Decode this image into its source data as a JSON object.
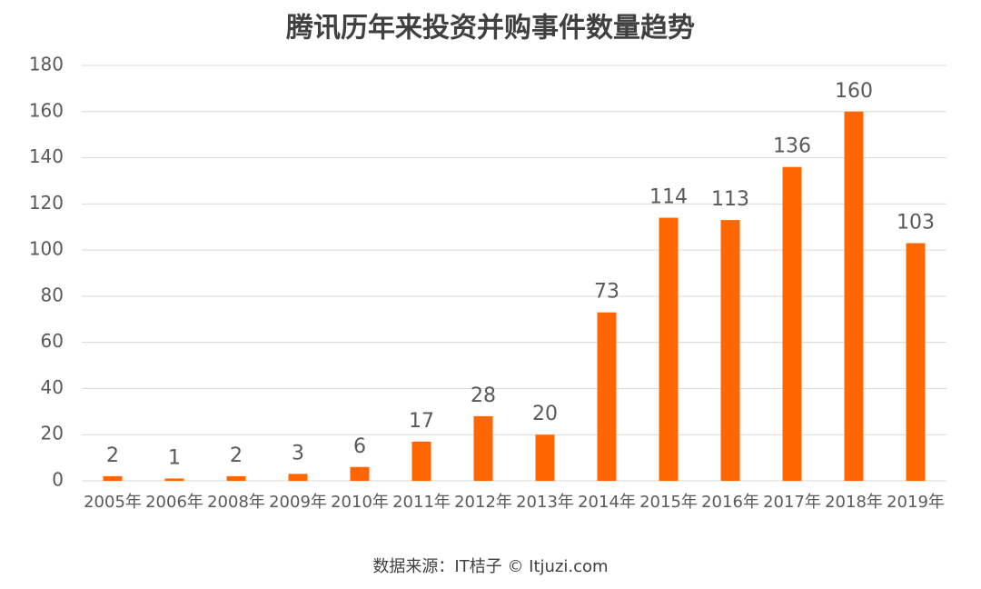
{
  "chart_data": {
    "type": "bar",
    "title": "腾讯历年来投资并购事件数量趋势",
    "categories": [
      "2005年",
      "2006年",
      "2008年",
      "2009年",
      "2010年",
      "2011年",
      "2012年",
      "2013年",
      "2014年",
      "2015年",
      "2016年",
      "2017年",
      "2018年",
      "2019年"
    ],
    "values": [
      2,
      1,
      2,
      3,
      6,
      17,
      28,
      20,
      73,
      114,
      113,
      136,
      160,
      103
    ],
    "color": "#ff6600",
    "ylim": [
      0,
      180
    ],
    "yticks": [
      0,
      20,
      40,
      60,
      80,
      100,
      120,
      140,
      160,
      180
    ],
    "grid": true,
    "source": "数据来源：IT桔子 © Itjuzi.com"
  }
}
